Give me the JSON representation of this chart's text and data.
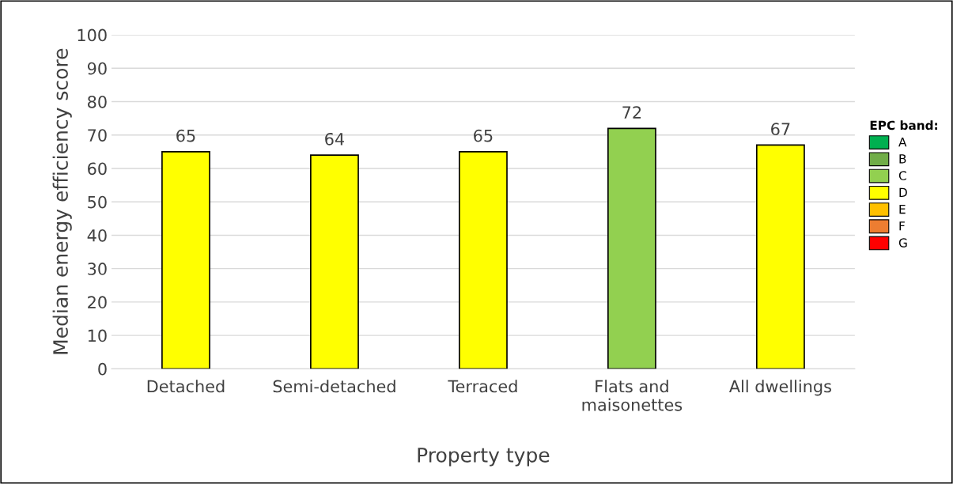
{
  "chart_data": {
    "type": "bar",
    "xlabel": "Property type",
    "ylabel": "Median energy efficiency score",
    "categories": [
      "Detached",
      "Semi-detached",
      "Terraced",
      "Flats and\nmaisonettes",
      "All dwellings"
    ],
    "legend_title": "EPC band:",
    "series": [
      {
        "name": "A",
        "color": "#00b050",
        "values": [
          null,
          null,
          null,
          null,
          null
        ]
      },
      {
        "name": "B",
        "color": "#70ad47",
        "values": [
          null,
          null,
          null,
          null,
          null
        ]
      },
      {
        "name": "C",
        "color": "#92d050",
        "values": [
          null,
          null,
          null,
          72,
          null
        ]
      },
      {
        "name": "D",
        "color": "#ffff00",
        "values": [
          65,
          64,
          65,
          null,
          67
        ]
      },
      {
        "name": "E",
        "color": "#ffc000",
        "values": [
          null,
          null,
          null,
          null,
          null
        ]
      },
      {
        "name": "F",
        "color": "#ed7d31",
        "values": [
          null,
          null,
          null,
          null,
          null
        ]
      },
      {
        "name": "G",
        "color": "#ff0000",
        "values": [
          null,
          null,
          null,
          null,
          null
        ]
      }
    ],
    "ylim": [
      0,
      100
    ],
    "yticks": [
      0,
      10,
      20,
      30,
      40,
      50,
      60,
      70,
      80,
      90,
      100
    ],
    "grid": "y",
    "legend": "right",
    "data_labels": true
  }
}
